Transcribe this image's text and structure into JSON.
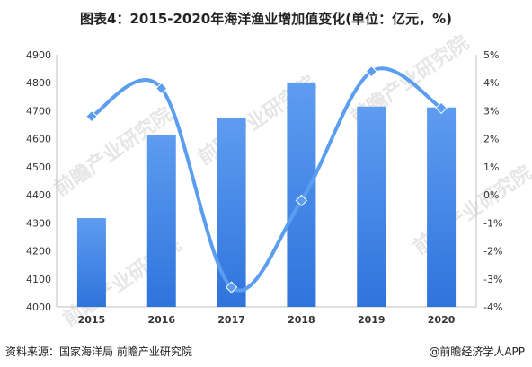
{
  "title": "图表4：2015-2020年海洋渔业增加值变化(单位：亿元，%)",
  "footer": {
    "source": "资料来源：国家海洋局 前瞻产业研究院",
    "brand": "@前瞻经济学人APP"
  },
  "watermark": {
    "text": "前瞻产业研究院"
  },
  "colors": {
    "bar": "#4a8fe6",
    "line": "#5b9ef0"
  },
  "chart_data": {
    "type": "bar",
    "categories": [
      "2015",
      "2016",
      "2017",
      "2018",
      "2019",
      "2020"
    ],
    "series": [
      {
        "type": "bar",
        "axis": "left",
        "values": [
          4317,
          4615,
          4676,
          4801,
          4715,
          4712
        ]
      },
      {
        "type": "line",
        "axis": "right",
        "values": [
          2.8,
          3.8,
          -3.3,
          -0.2,
          4.4,
          3.1
        ]
      }
    ],
    "left_axis": {
      "min": 4000,
      "max": 4900,
      "ticks": [
        "4000",
        "4100",
        "4200",
        "4300",
        "4400",
        "4500",
        "4600",
        "4700",
        "4800",
        "4900"
      ]
    },
    "right_axis": {
      "min": -4,
      "max": 5,
      "ticks": [
        "-4%",
        "-3%",
        "-2%",
        "-1%",
        "0%",
        "1%",
        "2%",
        "3%",
        "4%",
        "5%"
      ]
    },
    "grid": false,
    "legend": "none"
  }
}
